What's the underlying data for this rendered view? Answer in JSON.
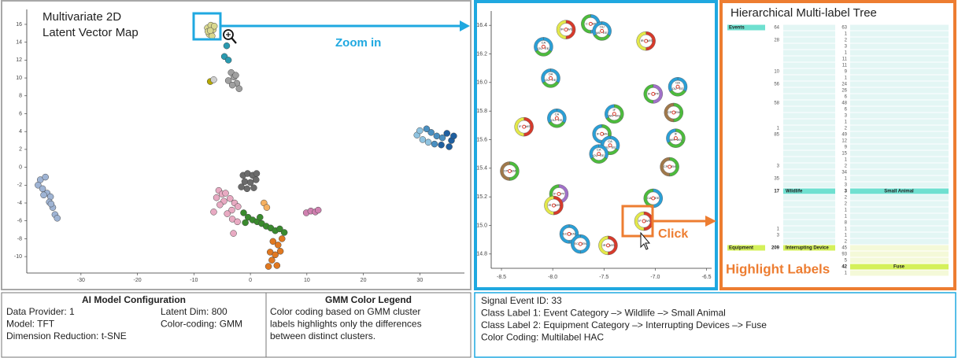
{
  "map": {
    "title_lines": [
      "Multivariate 2D",
      "Latent Vector Map"
    ],
    "xlim": [
      -39.6,
      37.9
    ],
    "ylim": [
      -11.84,
      17.67
    ],
    "xticks": [
      -30,
      -20,
      -10,
      0,
      10,
      20,
      30
    ],
    "yticks": [
      16,
      14,
      12,
      10,
      8,
      6,
      4,
      2,
      0,
      -2,
      -4,
      -6,
      -8,
      -10
    ],
    "clusters": [
      {
        "color": "#d9d88f",
        "points": [
          [
            -7.6,
            15.6
          ],
          [
            -7,
            15.9
          ],
          [
            -6.6,
            15.4
          ],
          [
            -7.3,
            14.9
          ],
          [
            -6.8,
            14.7
          ],
          [
            -7.5,
            15.2
          ],
          [
            -6.4,
            15.8
          ],
          [
            -7.1,
            15.3
          ]
        ]
      },
      {
        "color": "#2a9ab0",
        "points": [
          [
            -4.2,
            13.6
          ],
          [
            -4.6,
            12.4
          ],
          [
            -3.9,
            12
          ]
        ]
      },
      {
        "color": "#a0a0a0",
        "points": [
          [
            -3.4,
            10.6
          ],
          [
            -2.9,
            10.1
          ],
          [
            -3.9,
            9.7
          ],
          [
            -2.4,
            9.4
          ],
          [
            -2,
            8.8
          ],
          [
            -3.2,
            9.2
          ],
          [
            -2.6,
            10.3
          ]
        ]
      },
      {
        "color": "#b5a800",
        "points": [
          [
            -7.1,
            9.6
          ]
        ]
      },
      {
        "color": "#cfcfcf",
        "points": [
          [
            -6.5,
            9.8
          ]
        ]
      },
      {
        "color": "#8fc3e0",
        "points": [
          [
            29.5,
            3.6
          ],
          [
            30.5,
            3.1
          ],
          [
            31.5,
            2.8
          ],
          [
            30,
            4.1
          ]
        ]
      },
      {
        "color": "#4a8fc0",
        "points": [
          [
            32,
            3.9
          ],
          [
            33,
            3.5
          ],
          [
            31.2,
            4.3
          ],
          [
            34,
            3.3
          ],
          [
            32.6,
            2.6
          ]
        ]
      },
      {
        "color": "#1f5fa0",
        "points": [
          [
            34.8,
            3.8
          ],
          [
            35.6,
            3
          ],
          [
            33.8,
            2.5
          ],
          [
            35.2,
            2.3
          ],
          [
            36,
            3.5
          ]
        ]
      },
      {
        "color": "#9fb4d4",
        "points": [
          [
            -37.2,
            -1.4
          ],
          [
            -36.3,
            -1.1
          ],
          [
            -37.6,
            -2
          ],
          [
            -36.8,
            -2.4
          ],
          [
            -36,
            -2.9
          ],
          [
            -35.4,
            -3.3
          ],
          [
            -36.6,
            -3.1
          ],
          [
            -35.6,
            -3.9
          ],
          [
            -35,
            -4.5
          ],
          [
            -34.6,
            -5.3
          ],
          [
            -34.2,
            -5.7
          ],
          [
            -35.3,
            -4.1
          ]
        ]
      },
      {
        "color": "#6b6b6b",
        "points": [
          [
            -1.3,
            -0.9
          ],
          [
            -0.5,
            -0.7
          ],
          [
            0.4,
            -0.9
          ],
          [
            1.1,
            -0.7
          ],
          [
            -1,
            -1.6
          ],
          [
            0,
            -1.7
          ],
          [
            1,
            -1.4
          ],
          [
            -0.6,
            -2.4
          ],
          [
            0.6,
            -2.3
          ],
          [
            -1.6,
            -2.2
          ]
        ]
      },
      {
        "color": "#e8aac2",
        "points": [
          [
            -5.6,
            -2.6
          ],
          [
            -5,
            -3
          ],
          [
            -4.4,
            -2.9
          ],
          [
            -6,
            -3.4
          ],
          [
            -3.6,
            -3.5
          ],
          [
            -4.7,
            -3.8
          ],
          [
            -2.8,
            -4
          ],
          [
            -5.4,
            -4.2
          ],
          [
            -3.3,
            -4.8
          ],
          [
            -2.2,
            -4.4
          ],
          [
            -4.1,
            -5.2
          ],
          [
            -3.2,
            -5.8
          ],
          [
            -2.3,
            -6.1
          ],
          [
            -3,
            -7.4
          ],
          [
            -6.5,
            -5
          ]
        ]
      },
      {
        "color": "#3a8a2e",
        "points": [
          [
            -1.2,
            -5.1
          ],
          [
            -0.4,
            -5.6
          ],
          [
            0.4,
            -5.9
          ],
          [
            1.2,
            -6.1
          ],
          [
            2,
            -6.3
          ],
          [
            2.8,
            -6.6
          ],
          [
            3.6,
            -6.8
          ],
          [
            4.4,
            -7.1
          ],
          [
            5.2,
            -6.9
          ],
          [
            6,
            -7.3
          ],
          [
            1.7,
            -5.6
          ],
          [
            -0.9,
            -6.2
          ]
        ]
      },
      {
        "color": "#f5b060",
        "points": [
          [
            2.4,
            -4
          ],
          [
            2.9,
            -4.5
          ]
        ]
      },
      {
        "color": "#e07820",
        "points": [
          [
            4,
            -8.3
          ],
          [
            4.9,
            -8.7
          ],
          [
            3.5,
            -9.5
          ],
          [
            4.4,
            -9.8
          ],
          [
            5.3,
            -9.4
          ],
          [
            3.8,
            -10.4
          ],
          [
            4.7,
            -11
          ],
          [
            3.2,
            -11.1
          ],
          [
            5.6,
            -8
          ]
        ]
      },
      {
        "color": "#d080b0",
        "points": [
          [
            9.9,
            -5.1
          ],
          [
            10.7,
            -4.9
          ],
          [
            11.5,
            -5
          ],
          [
            12,
            -4.8
          ]
        ]
      }
    ]
  },
  "zoom_label": "Zoom in",
  "zoom": {
    "xlim": [
      -8.6,
      -6.45
    ],
    "ylim": [
      14.7,
      16.5
    ],
    "xticks": [
      -8.5,
      {
        "value": -8,
        "label": "-8.0"
      },
      -7.5,
      {
        "value": -7,
        "label": "-7.0"
      },
      -6.5
    ],
    "yticks": [
      16.4,
      16.2,
      {
        "value": 16,
        "label": "16.0"
      },
      15.8,
      15.6,
      15.4,
      15.2,
      {
        "value": 15,
        "label": "15.0"
      },
      14.8
    ],
    "glyphs": [
      {
        "x": -7.87,
        "y": 16.37,
        "labels": [
          "IR",
          "WS"
        ],
        "colors": [
          "#d63a2b",
          "#e3e84a"
        ]
      },
      {
        "x": -7.63,
        "y": 16.41,
        "labels": [
          "C",
          "WL"
        ],
        "colors": [
          "#2a9fd6",
          "#4cbb3c"
        ]
      },
      {
        "x": -7.52,
        "y": 16.36,
        "labels": [
          "OU",
          "EE",
          "WL"
        ],
        "colors": [
          "#2a9fd6",
          "#4cbb3c",
          "#2a9fd6"
        ]
      },
      {
        "x": -7.09,
        "y": 16.29,
        "labels": [
          "IR",
          "WS"
        ],
        "colors": [
          "#d63a2b",
          "#e3e84a"
        ]
      },
      {
        "x": -8.09,
        "y": 16.25,
        "labels": [
          "CA",
          "EE",
          "OU"
        ],
        "colors": [
          "#2a9fd6",
          "#4cbb3c",
          "#2a9fd6"
        ]
      },
      {
        "x": -8.02,
        "y": 16.03,
        "labels": [
          "OA",
          "EE",
          "OU"
        ],
        "colors": [
          "#2a9fd6",
          "#4cbb3c",
          "#2a9fd6"
        ]
      },
      {
        "x": -7.02,
        "y": 15.92,
        "labels": [
          "IF",
          "PF"
        ],
        "colors": [
          "#a070c8",
          "#4cbb3c"
        ]
      },
      {
        "x": -6.78,
        "y": 15.97,
        "labels": [
          "OA",
          "EE",
          "OU"
        ],
        "colors": [
          "#2a9fd6",
          "#4cbb3c",
          "#2a9fd6"
        ]
      },
      {
        "x": -7.96,
        "y": 15.75,
        "labels": [
          "CA",
          "EE",
          "OU"
        ],
        "colors": [
          "#2a9fd6",
          "#4cbb3c",
          "#2a9fd6"
        ]
      },
      {
        "x": -7.4,
        "y": 15.78,
        "labels": [
          "IF",
          "WS",
          "WH"
        ],
        "colors": [
          "#4cbb3c",
          "#4cbb3c",
          "#2a9fd6"
        ]
      },
      {
        "x": -6.82,
        "y": 15.79,
        "labels": [
          "CP",
          "EM"
        ],
        "colors": [
          "#4cbb3c",
          "#a0784a"
        ]
      },
      {
        "x": -8.28,
        "y": 15.69,
        "labels": [
          "IF",
          "WS"
        ],
        "colors": [
          "#d63a2b",
          "#e3e84a"
        ]
      },
      {
        "x": -7.52,
        "y": 15.64,
        "labels": [
          "IF",
          "WH"
        ],
        "colors": [
          "#4cbb3c",
          "#2a9fd6"
        ]
      },
      {
        "x": -7.44,
        "y": 15.56,
        "labels": [
          "CA",
          "EE",
          "OU"
        ],
        "colors": [
          "#2a9fd6",
          "#4cbb3c",
          "#2a9fd6"
        ]
      },
      {
        "x": -6.8,
        "y": 15.61,
        "labels": [
          "IF",
          "WS",
          "WH"
        ],
        "colors": [
          "#4cbb3c",
          "#4cbb3c",
          "#2a9fd6"
        ]
      },
      {
        "x": -7.55,
        "y": 15.5,
        "labels": [
          "CA",
          "EE",
          "OU"
        ],
        "colors": [
          "#2a9fd6",
          "#4cbb3c",
          "#2a9fd6"
        ]
      },
      {
        "x": -6.86,
        "y": 15.41,
        "labels": [
          "CP",
          "EM"
        ],
        "colors": [
          "#4cbb3c",
          "#a0784a"
        ]
      },
      {
        "x": -8.42,
        "y": 15.38,
        "labels": [
          "CP",
          "EM"
        ],
        "colors": [
          "#4cbb3c",
          "#a0784a"
        ]
      },
      {
        "x": -7.94,
        "y": 15.22,
        "labels": [
          "IF",
          "PF"
        ],
        "colors": [
          "#a070c8",
          "#4cbb3c"
        ]
      },
      {
        "x": -7.99,
        "y": 15.14,
        "labels": [
          "IR",
          "WS"
        ],
        "colors": [
          "#d63a2b",
          "#e3e84a"
        ]
      },
      {
        "x": -7.02,
        "y": 15.19,
        "labels": [
          "CA",
          "EE"
        ],
        "colors": [
          "#2a9fd6",
          "#4cbb3c"
        ]
      },
      {
        "x": -7.11,
        "y": 15.03,
        "labels": [
          "IF",
          "WS"
        ],
        "colors": [
          "#d63a2b",
          "#e3e84a"
        ]
      },
      {
        "x": -7.84,
        "y": 14.94,
        "labels": [
          "EC",
          "EN"
        ],
        "colors": [
          "#2a9fd6",
          "#2a9fd6"
        ]
      },
      {
        "x": -7.73,
        "y": 14.87,
        "labels": [
          "EC",
          "EN"
        ],
        "colors": [
          "#2a9fd6",
          "#2a9fd6"
        ]
      },
      {
        "x": -7.46,
        "y": 14.86,
        "labels": [
          "IR",
          "WS"
        ],
        "colors": [
          "#d63a2b",
          "#e3e84a"
        ]
      }
    ]
  },
  "click_label": "Click",
  "highlight_label": "Highlight Labels",
  "tree": {
    "title": "Hierarchical Multi-label Tree",
    "rows": [
      {
        "l1": "Events",
        "n2": 64,
        "n3": 63
      },
      {
        "n3": 1
      },
      {
        "n2": 28,
        "n3": 2
      },
      {
        "n3": 3
      },
      {
        "n3": 1
      },
      {
        "n3": 11
      },
      {
        "n3": 11
      },
      {
        "n2": 10,
        "n3": 9
      },
      {
        "n3": 1
      },
      {
        "n2": 56,
        "n3": 24
      },
      {
        "n3": 26
      },
      {
        "n3": 6
      },
      {
        "n2": 58,
        "n3": 48
      },
      {
        "n3": 6
      },
      {
        "n3": 3
      },
      {
        "n3": 1
      },
      {
        "n2": 1,
        "n3": 2
      },
      {
        "n2": 85,
        "n3": 49
      },
      {
        "n3": 12
      },
      {
        "n3": 9
      },
      {
        "n3": 15
      },
      {
        "n3": 1
      },
      {
        "n2": 3,
        "n3": 2
      },
      {
        "n3": 34
      },
      {
        "n2": 35,
        "n3": 1
      },
      {
        "n3": 3
      },
      {
        "n2": 17,
        "l2": "Wildlife",
        "n3": 3,
        "l3": "Small Animal",
        "highlight": true
      },
      {
        "n3": 2
      },
      {
        "n3": 2
      },
      {
        "n3": 1
      },
      {
        "n3": 1
      },
      {
        "n3": 8
      },
      {
        "n2": 1,
        "n3": 1
      },
      {
        "n2": 3,
        "n3": 1
      },
      {
        "n3": 2
      },
      {
        "l1": "Equipment",
        "n2": 209,
        "l2": "Interrupting Device",
        "n3": 45
      },
      {
        "n3": 93
      },
      {
        "n3": 5
      },
      {
        "n3": 42,
        "l3": "Fuse",
        "highlight": true
      },
      {
        "n3": 1
      }
    ]
  },
  "config": {
    "title": "AI Model Configuration",
    "items": [
      "Data Provider: 1",
      "Latent Dim: 800",
      "Model: TFT",
      "Color-coding: GMM",
      "Dimension Reduction: t-SNE"
    ]
  },
  "legend": {
    "title": "GMM Color Legend",
    "lines": [
      "Color coding based on GMM cluster",
      "labels highlights only the differences",
      "between distinct clusters."
    ]
  },
  "event": {
    "lines": [
      "Signal Event ID: 33",
      "Class Label 1: Event Category –> Wildlife –> Small Animal",
      "Class Label 2: Equipment Category –> Interrupting Devices –> Fuse",
      "Color Coding: Multilabel HAC"
    ]
  }
}
